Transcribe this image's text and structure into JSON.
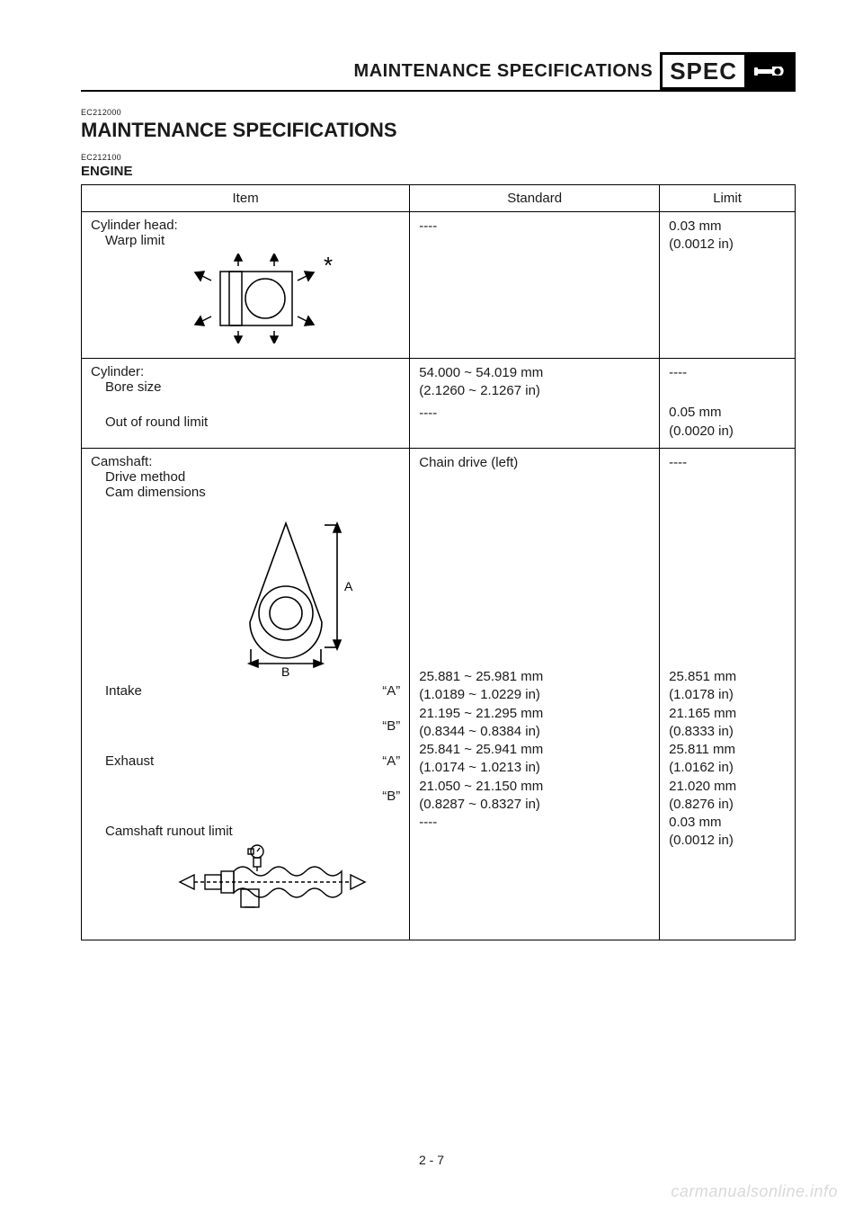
{
  "header": {
    "title": "MAINTENANCE SPECIFICATIONS",
    "badge": "SPEC",
    "icon_name": "wrench-icon",
    "icon_bg": "#000000",
    "icon_fg": "#ffffff"
  },
  "section": {
    "code": "EC212000",
    "title": "MAINTENANCE SPECIFICATIONS",
    "sub_code": "EC212100",
    "sub_title": "ENGINE"
  },
  "table": {
    "columns": [
      "Item",
      "Standard",
      "Limit"
    ],
    "col_widths_pct": [
      46,
      35,
      19
    ],
    "border_color": "#000000",
    "font_size_pt": 11,
    "groups": [
      {
        "head": "Cylinder head:",
        "rows": [
          {
            "label": "Warp limit",
            "dim": "",
            "std": "----",
            "limit": "0.03 mm\n(0.0012 in)",
            "figure": "warp"
          }
        ]
      },
      {
        "head": "Cylinder:",
        "rows": [
          {
            "label": "Bore size",
            "dim": "",
            "std": "54.000 ~ 54.019 mm\n(2.1260 ~ 2.1267 in)",
            "limit": "----"
          },
          {
            "label": "Out of round limit",
            "dim": "",
            "std": "----",
            "limit": "0.05 mm\n(0.0020 in)"
          }
        ]
      },
      {
        "head": "Camshaft:",
        "rows": [
          {
            "label": "Drive method",
            "dim": "",
            "std": "Chain drive (left)",
            "limit": "----"
          },
          {
            "label": "Cam dimensions",
            "dim": "",
            "std": "",
            "limit": "",
            "figure": "cam"
          },
          {
            "label": "Intake",
            "dim": "“A”",
            "std": "25.881 ~ 25.981 mm\n(1.0189 ~ 1.0229 in)",
            "limit": "25.851 mm\n(1.0178 in)"
          },
          {
            "label": "",
            "dim": "“B”",
            "std": "21.195 ~ 21.295 mm\n(0.8344 ~ 0.8384 in)",
            "limit": "21.165 mm\n(0.8333 in)"
          },
          {
            "label": "Exhaust",
            "dim": "“A”",
            "std": "25.841 ~ 25.941 mm\n(1.0174 ~ 1.0213 in)",
            "limit": "25.811 mm\n(1.0162 in)"
          },
          {
            "label": "",
            "dim": "“B”",
            "std": "21.050 ~ 21.150 mm\n(0.8287 ~ 0.8327 in)",
            "limit": "21.020 mm\n(0.8276 in)"
          },
          {
            "label": "Camshaft runout limit",
            "dim": "",
            "std": "----",
            "limit": "0.03 mm\n(0.0012 in)",
            "figure": "runout"
          }
        ]
      }
    ]
  },
  "figures": {
    "warp": {
      "label_A": "",
      "label_B": "",
      "asterisk": "*"
    },
    "cam": {
      "label_A": "A",
      "label_B": "B"
    },
    "runout": {}
  },
  "footer": {
    "page": "2 - 7",
    "watermark": "carmanualsonline.info"
  },
  "colors": {
    "text": "#1a1a1a",
    "watermark": "#d9d9d9",
    "background": "#ffffff"
  }
}
